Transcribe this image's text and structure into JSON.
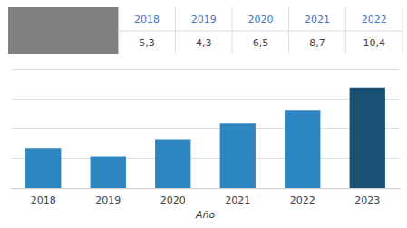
{
  "chart_data": {
    "type": "bar",
    "xlabel": "Año",
    "categories": [
      "2018",
      "2019",
      "2020",
      "2021",
      "2022",
      "2023"
    ],
    "values": [
      5.3,
      4.3,
      6.5,
      8.7,
      10.4,
      13.5
    ],
    "colors": [
      "#2E86C1",
      "#2E86C1",
      "#2E86C1",
      "#2E86C1",
      "#2E86C1",
      "#1A5276"
    ],
    "ylim": [
      0,
      16
    ],
    "yticks": [
      0,
      4,
      8,
      12,
      16
    ],
    "grid": true,
    "tick_labels": "x",
    "table": {
      "categories": [
        "2018",
        "2019",
        "2020",
        "2021",
        "2022"
      ],
      "values": [
        5.3,
        4.3,
        6.5,
        8.7,
        10.4
      ],
      "value_labels": [
        "5,3",
        "4,3",
        "6,5",
        "8,7",
        "10,4"
      ]
    }
  }
}
